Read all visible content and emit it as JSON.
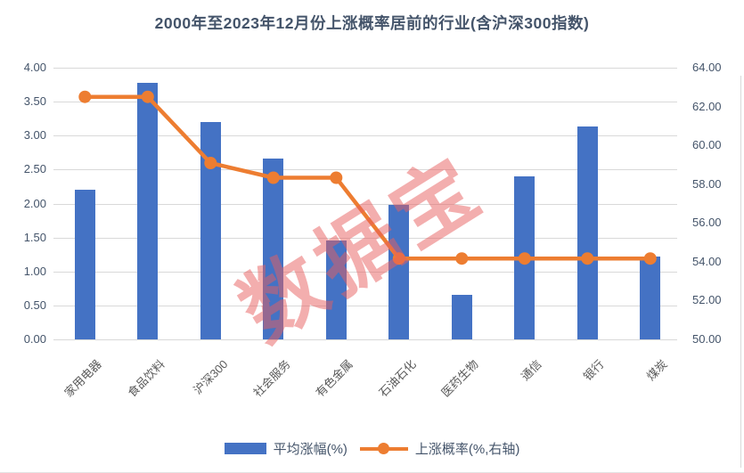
{
  "title": "2000年至2023年12月份上涨概率居前的行业(含沪深300指数)",
  "watermark_text": "数据宝",
  "colors": {
    "bar": "#4472C4",
    "line": "#ED7D31",
    "grid": "#D9D9D9",
    "axis_text": "#44546A",
    "category_text": "#595959",
    "title_text": "#44546A",
    "legend_text": "#44546A",
    "watermark": "rgba(232,94,94,0.5)"
  },
  "left_axis": {
    "ticks": [
      "4.00",
      "3.50",
      "3.00",
      "2.50",
      "2.00",
      "1.50",
      "1.00",
      "0.50",
      "0.00"
    ],
    "min": 0,
    "max": 4,
    "step": 0.5
  },
  "right_axis": {
    "ticks": [
      "64.00",
      "62.00",
      "60.00",
      "58.00",
      "56.00",
      "54.00",
      "52.00",
      "50.00"
    ],
    "min": 50,
    "max": 64,
    "step": 2
  },
  "legend": {
    "items": [
      {
        "label": "平均涨幅(%)",
        "series": "bar"
      },
      {
        "label": "上涨概率(%,右轴)",
        "series": "line"
      }
    ]
  },
  "chart_data": {
    "type": "bar",
    "subtype": "bar+line-dual-axis",
    "title": "2000年至2023年12月份上涨概率居前的行业(含沪深300指数)",
    "categories": [
      "家用电器",
      "食品饮料",
      "沪深300",
      "社会服务",
      "有色金属",
      "石油石化",
      "医药生物",
      "通信",
      "银行",
      "煤炭"
    ],
    "series": [
      {
        "name": "平均涨幅(%)",
        "type": "bar",
        "axis": "left",
        "values": [
          2.21,
          3.78,
          3.2,
          2.66,
          1.46,
          1.98,
          0.66,
          2.4,
          3.14,
          1.22
        ]
      },
      {
        "name": "上涨概率(%,右轴)",
        "type": "line",
        "axis": "right",
        "values": [
          62.5,
          62.5,
          59.09,
          58.33,
          58.33,
          54.17,
          54.17,
          54.17,
          54.17,
          54.17
        ]
      }
    ],
    "xlabel": "",
    "ylabel_left": "",
    "ylabel_right": "",
    "left_ylim": [
      0,
      4
    ],
    "right_ylim": [
      50,
      64
    ],
    "grid": true,
    "legend_position": "bottom",
    "category_label_rotation_deg": 45
  }
}
